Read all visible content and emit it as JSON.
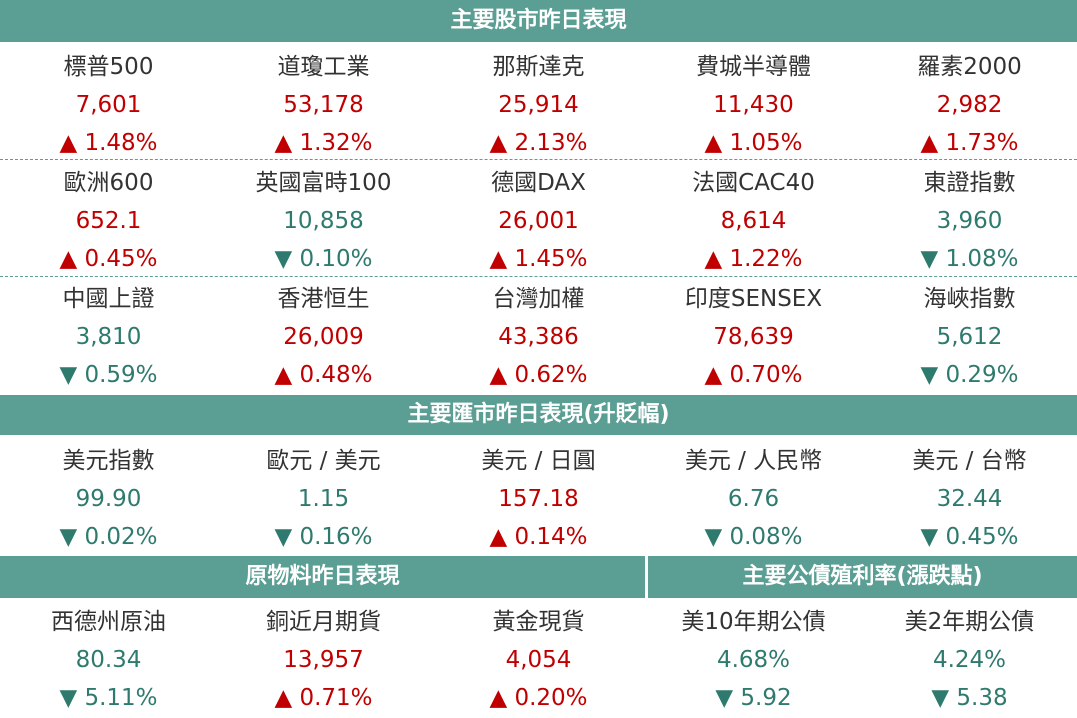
{
  "stocks": {
    "title": "主要股市昨日表現",
    "rows": [
      [
        {
          "name": "標普500",
          "value": "7,601",
          "change": "▲ 1.48%",
          "color": "#c00000"
        },
        {
          "name": "道瓊工業",
          "value": "53,178",
          "change": "▲ 1.32%",
          "color": "#c00000"
        },
        {
          "name": "那斯達克",
          "value": "25,914",
          "change": "▲ 2.13%",
          "color": "#c00000"
        },
        {
          "name": "費城半導體",
          "value": "11,430",
          "change": "▲ 1.05%",
          "color": "#c00000"
        },
        {
          "name": "羅素2000",
          "value": "2,982",
          "change": "▲ 1.73%",
          "color": "#c00000"
        }
      ],
      [
        {
          "name": "歐洲600",
          "value": "652.1",
          "change": "▲ 0.45%",
          "color": "#c00000"
        },
        {
          "name": "英國富時100",
          "value": "10,858",
          "change": "▼ 0.10%",
          "color": "#2f7a6e"
        },
        {
          "name": "德國DAX",
          "value": "26,001",
          "change": "▲ 1.45%",
          "color": "#c00000"
        },
        {
          "name": "法國CAC40",
          "value": "8,614",
          "change": "▲ 1.22%",
          "color": "#c00000"
        },
        {
          "name": "東證指數",
          "value": "3,960",
          "change": "▼ 1.08%",
          "color": "#2f7a6e"
        }
      ],
      [
        {
          "name": "中國上證",
          "value": "3,810",
          "change": "▼ 0.59%",
          "color": "#2f7a6e"
        },
        {
          "name": "香港恒生",
          "value": "26,009",
          "change": "▲ 0.48%",
          "color": "#c00000"
        },
        {
          "name": "台灣加權",
          "value": "43,386",
          "change": "▲ 0.62%",
          "color": "#c00000"
        },
        {
          "name": "印度SENSEX",
          "value": "78,639",
          "change": "▲ 0.70%",
          "color": "#c00000"
        },
        {
          "name": "海峽指數",
          "value": "5,612",
          "change": "▼ 0.29%",
          "color": "#2f7a6e"
        }
      ]
    ]
  },
  "fx": {
    "title": "主要匯市昨日表現(升貶幅)",
    "items": [
      {
        "name": "美元指數",
        "value": "99.90",
        "change": "▼ 0.02%",
        "color": "#2f7a6e"
      },
      {
        "name": "歐元 / 美元",
        "value": "1.15",
        "change": "▼ 0.16%",
        "color": "#2f7a6e"
      },
      {
        "name": "美元 / 日圓",
        "value": "157.18",
        "change": "▲ 0.14%",
        "color": "#c00000"
      },
      {
        "name": "美元 / 人民幣",
        "value": "6.76",
        "change": "▼ 0.08%",
        "color": "#2f7a6e"
      },
      {
        "name": "美元 / 台幣",
        "value": "32.44",
        "change": "▼ 0.45%",
        "color": "#2f7a6e"
      }
    ]
  },
  "commodities": {
    "title": "原物料昨日表現",
    "items": [
      {
        "name": "西德州原油",
        "value": "80.34",
        "change": "▼ 5.11%",
        "color": "#2f7a6e"
      },
      {
        "name": "銅近月期貨",
        "value": "13,957",
        "change": "▲ 0.71%",
        "color": "#c00000"
      },
      {
        "name": "黃金現貨",
        "value": "4,054",
        "change": "▲ 0.20%",
        "color": "#c00000"
      }
    ]
  },
  "bonds": {
    "title": "主要公債殖利率(漲跌點)",
    "items": [
      {
        "name": "美10年期公債",
        "value": "4.68%",
        "change": "▼ 5.92",
        "color": "#2f7a6e"
      },
      {
        "name": "美2年期公債",
        "value": "4.24%",
        "change": "▼ 5.38",
        "color": "#2f7a6e"
      }
    ]
  }
}
